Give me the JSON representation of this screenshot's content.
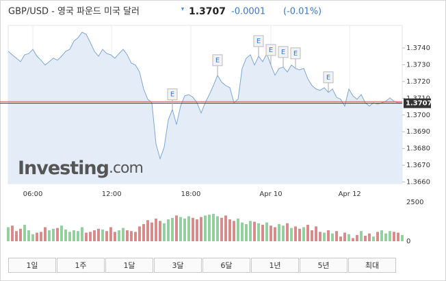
{
  "header": {
    "title": "GBP/USD - 영국 파운드 미국 달러",
    "change": -0.0001,
    "change_pct": "(-0.01%)"
  },
  "chart_data": {
    "type": "line",
    "last": 1.3707,
    "prev_close": 1.3708,
    "line_color": "#7ea6d4",
    "area_color": "#e4edf7",
    "prev_color": "#d9534f",
    "last_color": "#333333",
    "values": [
      1.3738,
      1.37359,
      1.37339,
      1.37318,
      1.37359,
      1.37367,
      1.37392,
      1.37351,
      1.37327,
      1.37298,
      1.37318,
      1.37339,
      1.37327,
      1.37351,
      1.3738,
      1.37392,
      1.37441,
      1.37461,
      1.37494,
      1.37482,
      1.37433,
      1.3738,
      1.37351,
      1.37392,
      1.37367,
      1.37359,
      1.37339,
      1.37367,
      1.37392,
      1.37359,
      1.3731,
      1.37298,
      1.37257,
      1.37155,
      1.37094,
      1.37073,
      1.36829,
      1.36739,
      1.36808,
      1.36971,
      1.37033,
      1.36943,
      1.37053,
      1.37114,
      1.37122,
      1.37106,
      1.37073,
      1.37012,
      1.37073,
      1.37122,
      1.37176,
      1.37237,
      1.37196,
      1.37176,
      1.37163,
      1.37073,
      1.37094,
      1.37278,
      1.37339,
      1.37359,
      1.37298,
      1.37351,
      1.37318,
      1.37367,
      1.37298,
      1.37237,
      1.37278,
      1.37286,
      1.37257,
      1.37298,
      1.37278,
      1.37269,
      1.37278,
      1.37216,
      1.37176,
      1.37155,
      1.37147,
      1.37163,
      1.37135,
      1.37155,
      1.37106,
      1.37094,
      1.37053,
      1.37155,
      1.37114,
      1.37094,
      1.37122,
      1.37073,
      1.37053,
      1.37073,
      1.37065,
      1.37073,
      1.37082,
      1.37102,
      1.37082,
      1.37073,
      1.37073
    ],
    "ylim": [
      1.3659,
      1.37535
    ],
    "yticks": [
      {
        "value": 1.366,
        "label": "1.3660"
      },
      {
        "value": 1.367,
        "label": "1.3670"
      },
      {
        "value": 1.368,
        "label": "1.3680"
      },
      {
        "value": 1.369,
        "label": "1.3690"
      },
      {
        "value": 1.37,
        "label": "1.3700"
      },
      {
        "value": 1.371,
        "label": "1.3710"
      },
      {
        "value": 1.372,
        "label": "1.3720"
      },
      {
        "value": 1.373,
        "label": "1.3730"
      },
      {
        "value": 1.374,
        "label": "1.3740"
      }
    ],
    "xlim": [
      0,
      96
    ],
    "xticks": [
      {
        "value": 6,
        "label": "06:00"
      },
      {
        "value": 25.2,
        "label": "12:00"
      },
      {
        "value": 44.5,
        "label": "18:00"
      },
      {
        "value": 64,
        "label": "Apr 10"
      },
      {
        "value": 83.2,
        "label": "Apr 12"
      }
    ],
    "event_label": "E",
    "event_points": [
      40,
      51,
      61,
      64,
      67,
      70,
      78
    ],
    "watermark": {
      "brand": "Investing",
      "suffix": ".com"
    },
    "volume": {
      "values": [
        900,
        1000,
        650,
        800,
        1050,
        700,
        450,
        550,
        600,
        900,
        700,
        800,
        850,
        1000,
        750,
        600,
        700,
        650,
        900,
        550,
        600,
        700,
        800,
        750,
        650,
        900,
        600,
        700,
        850,
        700,
        650,
        600,
        950,
        1100,
        1350,
        1200,
        1450,
        1300,
        1150,
        1400,
        1500,
        1650,
        1550,
        1450,
        1600,
        1500,
        1400,
        1550,
        1650,
        1700,
        1750,
        1600,
        1500,
        1650,
        1400,
        1300,
        1450,
        1200,
        1100,
        1300,
        1250,
        1150,
        1050,
        1200,
        1000,
        900,
        1100,
        1000,
        1150,
        850,
        950,
        800,
        900,
        1050,
        700,
        950,
        600,
        550,
        700,
        500,
        650,
        300,
        550,
        450,
        200,
        400,
        650,
        350,
        500,
        300,
        600,
        700,
        500,
        650,
        600,
        550,
        400
      ],
      "ylim": [
        0,
        2500
      ],
      "yticks": [
        0,
        2500
      ],
      "up_color": "#93cf9f",
      "down_color": "#d98a8a"
    }
  },
  "tabs": [
    "1일",
    "1주",
    "1달",
    "3달",
    "6달",
    "1년",
    "5년",
    "최대"
  ]
}
